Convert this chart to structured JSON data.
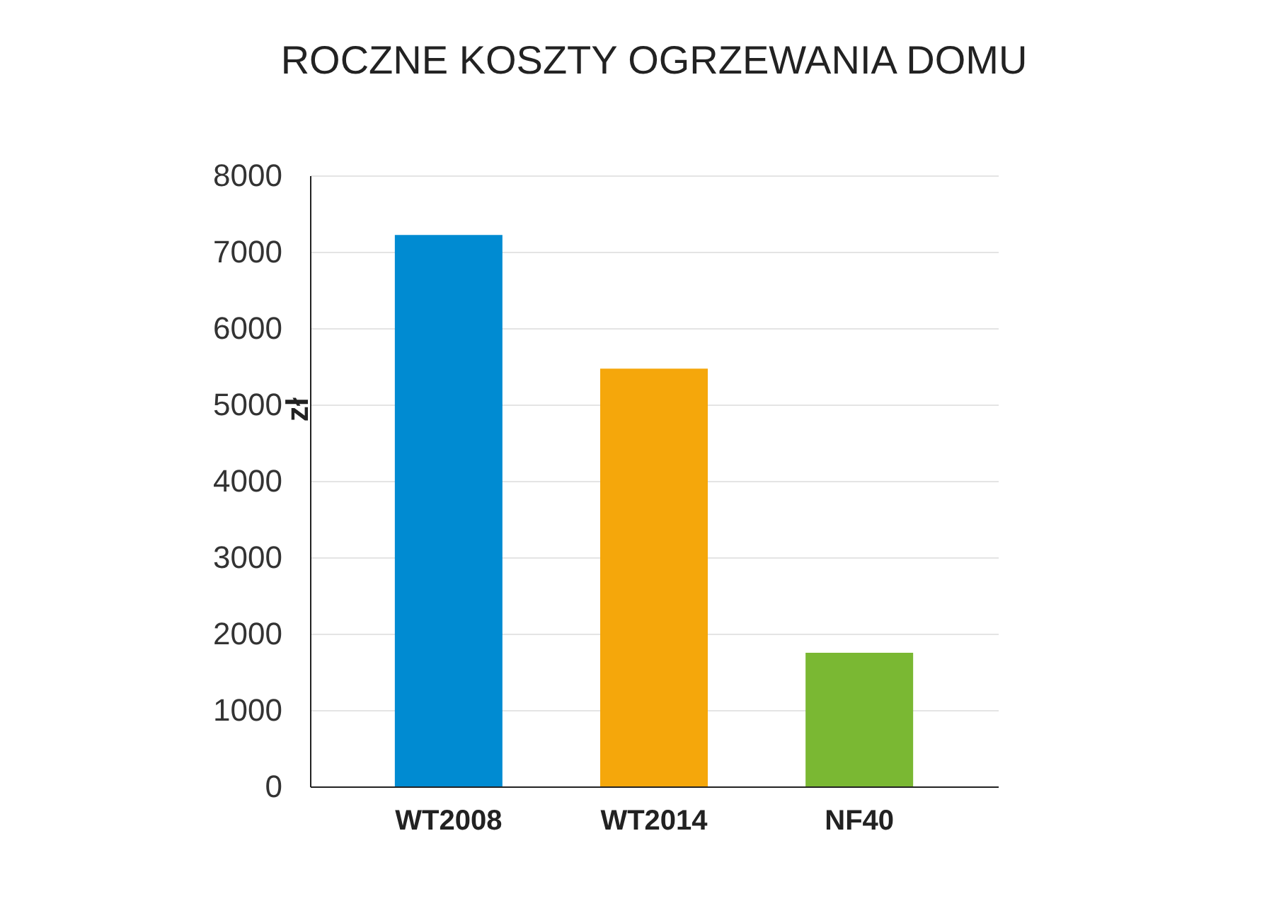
{
  "chart_data": {
    "type": "bar",
    "title": "ROCZNE KOSZTY OGRZEWANIA DOMU",
    "ylabel": "zł",
    "categories": [
      "WT2008",
      "WT2014",
      "NF40"
    ],
    "values": [
      7220,
      5470,
      1750
    ],
    "colors": [
      "#008bd2",
      "#f5a70b",
      "#7ab833"
    ],
    "ylim": [
      0,
      8000
    ],
    "yticks": [
      0,
      1000,
      2000,
      3000,
      4000,
      5000,
      6000,
      7000,
      8000
    ],
    "grid": "y"
  }
}
